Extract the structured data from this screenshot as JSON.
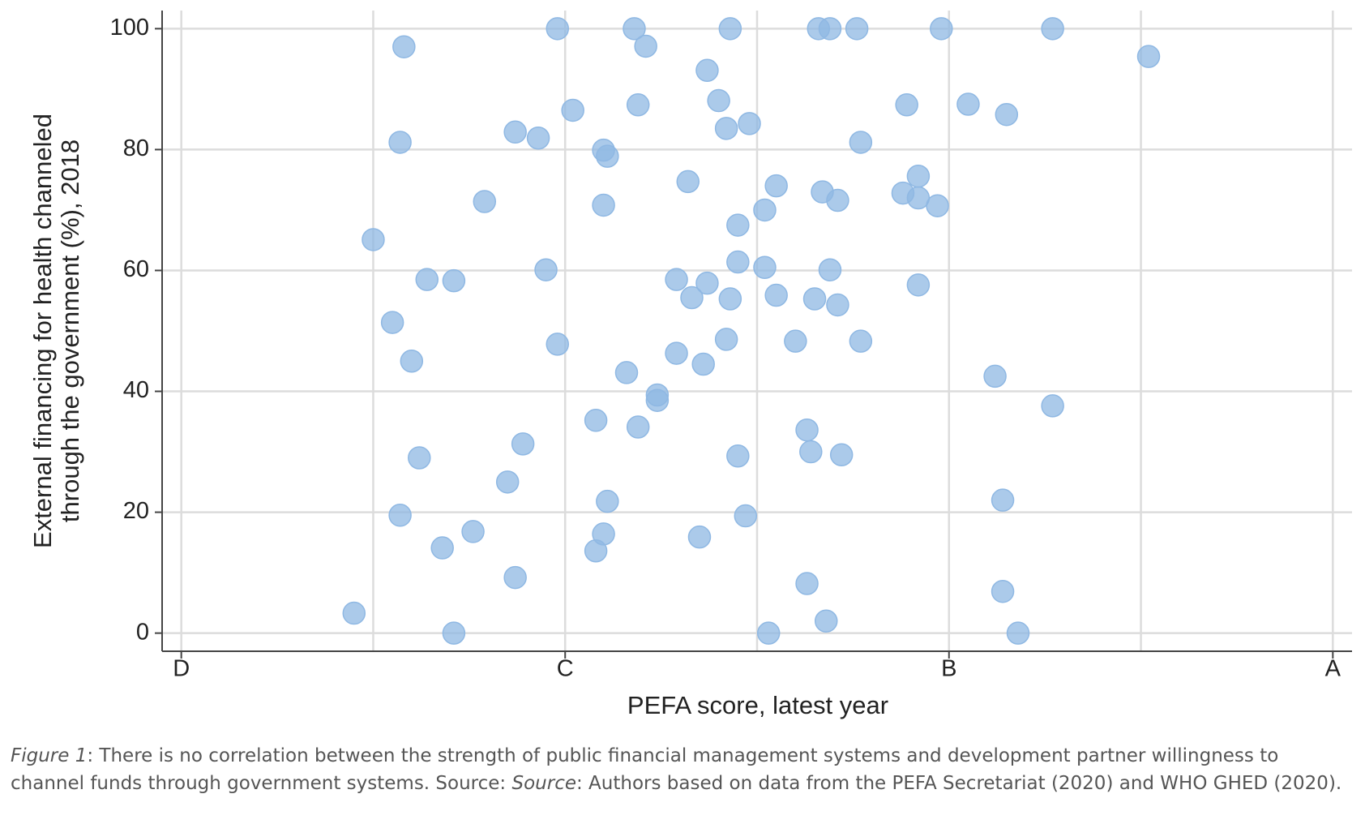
{
  "chart_data": {
    "type": "scatter",
    "xlabel": "PEFA score, latest year",
    "ylabel": [
      "External financing for health channeled",
      "through the government (%), 2018"
    ],
    "xlim": [
      0.95,
      4.05
    ],
    "ylim": [
      -3,
      103
    ],
    "xticks": [
      {
        "value": 1,
        "label": "D"
      },
      {
        "value": 2,
        "label": "C"
      },
      {
        "value": 3,
        "label": "B"
      },
      {
        "value": 4,
        "label": "A"
      }
    ],
    "xgrid_minor": [
      1.5,
      2.5,
      3.5
    ],
    "yticks": [
      0,
      20,
      40,
      60,
      80,
      100
    ],
    "grid": true,
    "color": "#8fb8e3",
    "x": [
      1.45,
      1.5,
      1.55,
      1.57,
      1.57,
      1.58,
      1.6,
      1.62,
      1.64,
      1.68,
      1.71,
      1.71,
      1.76,
      1.79,
      1.85,
      1.87,
      1.87,
      1.89,
      1.93,
      1.95,
      1.98,
      1.98,
      2.02,
      2.08,
      2.08,
      2.1,
      2.1,
      2.1,
      2.11,
      2.11,
      2.16,
      2.18,
      2.19,
      2.19,
      2.21,
      2.24,
      2.24,
      2.29,
      2.29,
      2.32,
      2.33,
      2.35,
      2.36,
      2.37,
      2.37,
      2.4,
      2.42,
      2.42,
      2.43,
      2.43,
      2.45,
      2.45,
      2.45,
      2.47,
      2.48,
      2.52,
      2.52,
      2.53,
      2.55,
      2.55,
      2.6,
      2.63,
      2.63,
      2.64,
      2.65,
      2.66,
      2.67,
      2.68,
      2.69,
      2.69,
      2.71,
      2.71,
      2.72,
      2.76,
      2.77,
      2.77,
      2.88,
      2.89,
      2.92,
      2.92,
      2.92,
      2.97,
      2.98,
      3.05,
      3.12,
      3.14,
      3.14,
      3.15,
      3.18,
      3.27,
      3.27,
      3.52
    ],
    "values": [
      3.3,
      65.1,
      51.4,
      19.5,
      81.2,
      97.0,
      45.0,
      29.0,
      58.5,
      14.1,
      0,
      58.3,
      16.8,
      71.4,
      25.0,
      9.2,
      82.9,
      31.3,
      81.9,
      60.1,
      100,
      47.8,
      86.5,
      35.2,
      13.6,
      79.9,
      70.8,
      16.4,
      78.9,
      21.8,
      43.1,
      100,
      87.4,
      34.1,
      97.1,
      39.4,
      38.5,
      46.3,
      58.5,
      74.7,
      55.5,
      15.9,
      44.5,
      93.1,
      57.9,
      88.1,
      83.5,
      48.6,
      55.3,
      100,
      67.5,
      61.4,
      29.3,
      19.4,
      84.3,
      70.0,
      60.5,
      0,
      55.9,
      74.0,
      48.3,
      33.6,
      8.2,
      30.0,
      55.3,
      100,
      73.0,
      2.0,
      60.1,
      100,
      71.6,
      54.3,
      29.5,
      100,
      81.2,
      48.3,
      72.8,
      87.4,
      72.0,
      57.6,
      75.6,
      70.7,
      100,
      87.5,
      42.5,
      22.0,
      6.9,
      85.8,
      0,
      100,
      37.6,
      95.4
    ]
  },
  "caption": {
    "figure_label": "Figure 1",
    "text": ": There is no correlation between the strength of public financial management systems and development partner willingness to channel funds through government systems. Source: ",
    "source_label": "Source",
    "source_text": ": Authors based on data from the PEFA Secretariat (2020) and WHO GHED (2020)."
  }
}
